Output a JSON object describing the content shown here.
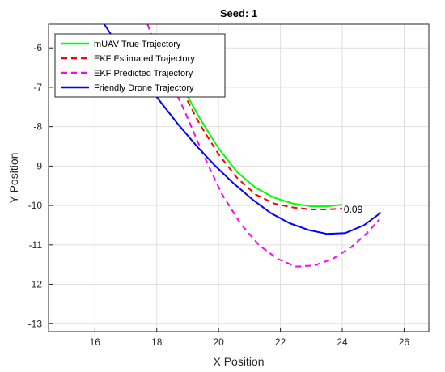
{
  "chart_data": {
    "type": "line",
    "title": "Seed: 1",
    "xlabel": "X Position",
    "ylabel": "Y Position",
    "xlim": [
      14.5,
      26.8
    ],
    "ylim": [
      -13.2,
      -5.4
    ],
    "xticks": [
      16,
      18,
      20,
      22,
      24,
      26
    ],
    "yticks": [
      -13,
      -12,
      -11,
      -10,
      -9,
      -8,
      -7,
      -6
    ],
    "grid": true,
    "legend_position": "top-left",
    "annotations": [
      {
        "text": "0.09",
        "x": 24.05,
        "y": -10.08
      }
    ],
    "series": [
      {
        "name": "mUAV True Trajectory",
        "color": "#00ff00",
        "style": "solid",
        "x": [
          18.2,
          18.8,
          19.4,
          20.0,
          20.6,
          21.2,
          21.8,
          22.4,
          23.0,
          23.5,
          24.0
        ],
        "y": [
          -6.0,
          -6.95,
          -7.8,
          -8.55,
          -9.15,
          -9.55,
          -9.8,
          -9.95,
          -10.02,
          -10.02,
          -9.98
        ]
      },
      {
        "name": "EKF Estimated Trajectory",
        "color": "#ff0000",
        "style": "dashed",
        "x": [
          18.2,
          18.8,
          19.4,
          20.0,
          20.6,
          21.2,
          21.8,
          22.4,
          23.0,
          23.5,
          24.0
        ],
        "y": [
          -6.0,
          -7.05,
          -7.95,
          -8.7,
          -9.3,
          -9.72,
          -9.95,
          -10.05,
          -10.1,
          -10.1,
          -10.08
        ]
      },
      {
        "name": "EKF Predicted Trajectory",
        "color": "#ff00ff",
        "style": "dashed",
        "x": [
          17.7,
          18.3,
          18.9,
          19.5,
          20.1,
          20.7,
          21.3,
          21.9,
          22.5,
          23.1,
          23.7,
          24.3,
          24.8,
          25.2
        ],
        "y": [
          -5.4,
          -6.6,
          -7.6,
          -8.7,
          -9.7,
          -10.45,
          -11.0,
          -11.35,
          -11.55,
          -11.52,
          -11.35,
          -11.05,
          -10.7,
          -10.35
        ]
      },
      {
        "name": "Friendly Drone Trajectory",
        "color": "#0000ff",
        "style": "solid",
        "x": [
          16.3,
          16.9,
          17.5,
          18.1,
          18.7,
          19.3,
          19.9,
          20.5,
          21.1,
          21.7,
          22.3,
          22.9,
          23.5,
          24.1,
          24.7,
          25.25
        ],
        "y": [
          -5.4,
          -6.1,
          -6.75,
          -7.35,
          -7.95,
          -8.5,
          -9.0,
          -9.45,
          -9.85,
          -10.2,
          -10.45,
          -10.62,
          -10.72,
          -10.7,
          -10.5,
          -10.18
        ]
      }
    ]
  }
}
